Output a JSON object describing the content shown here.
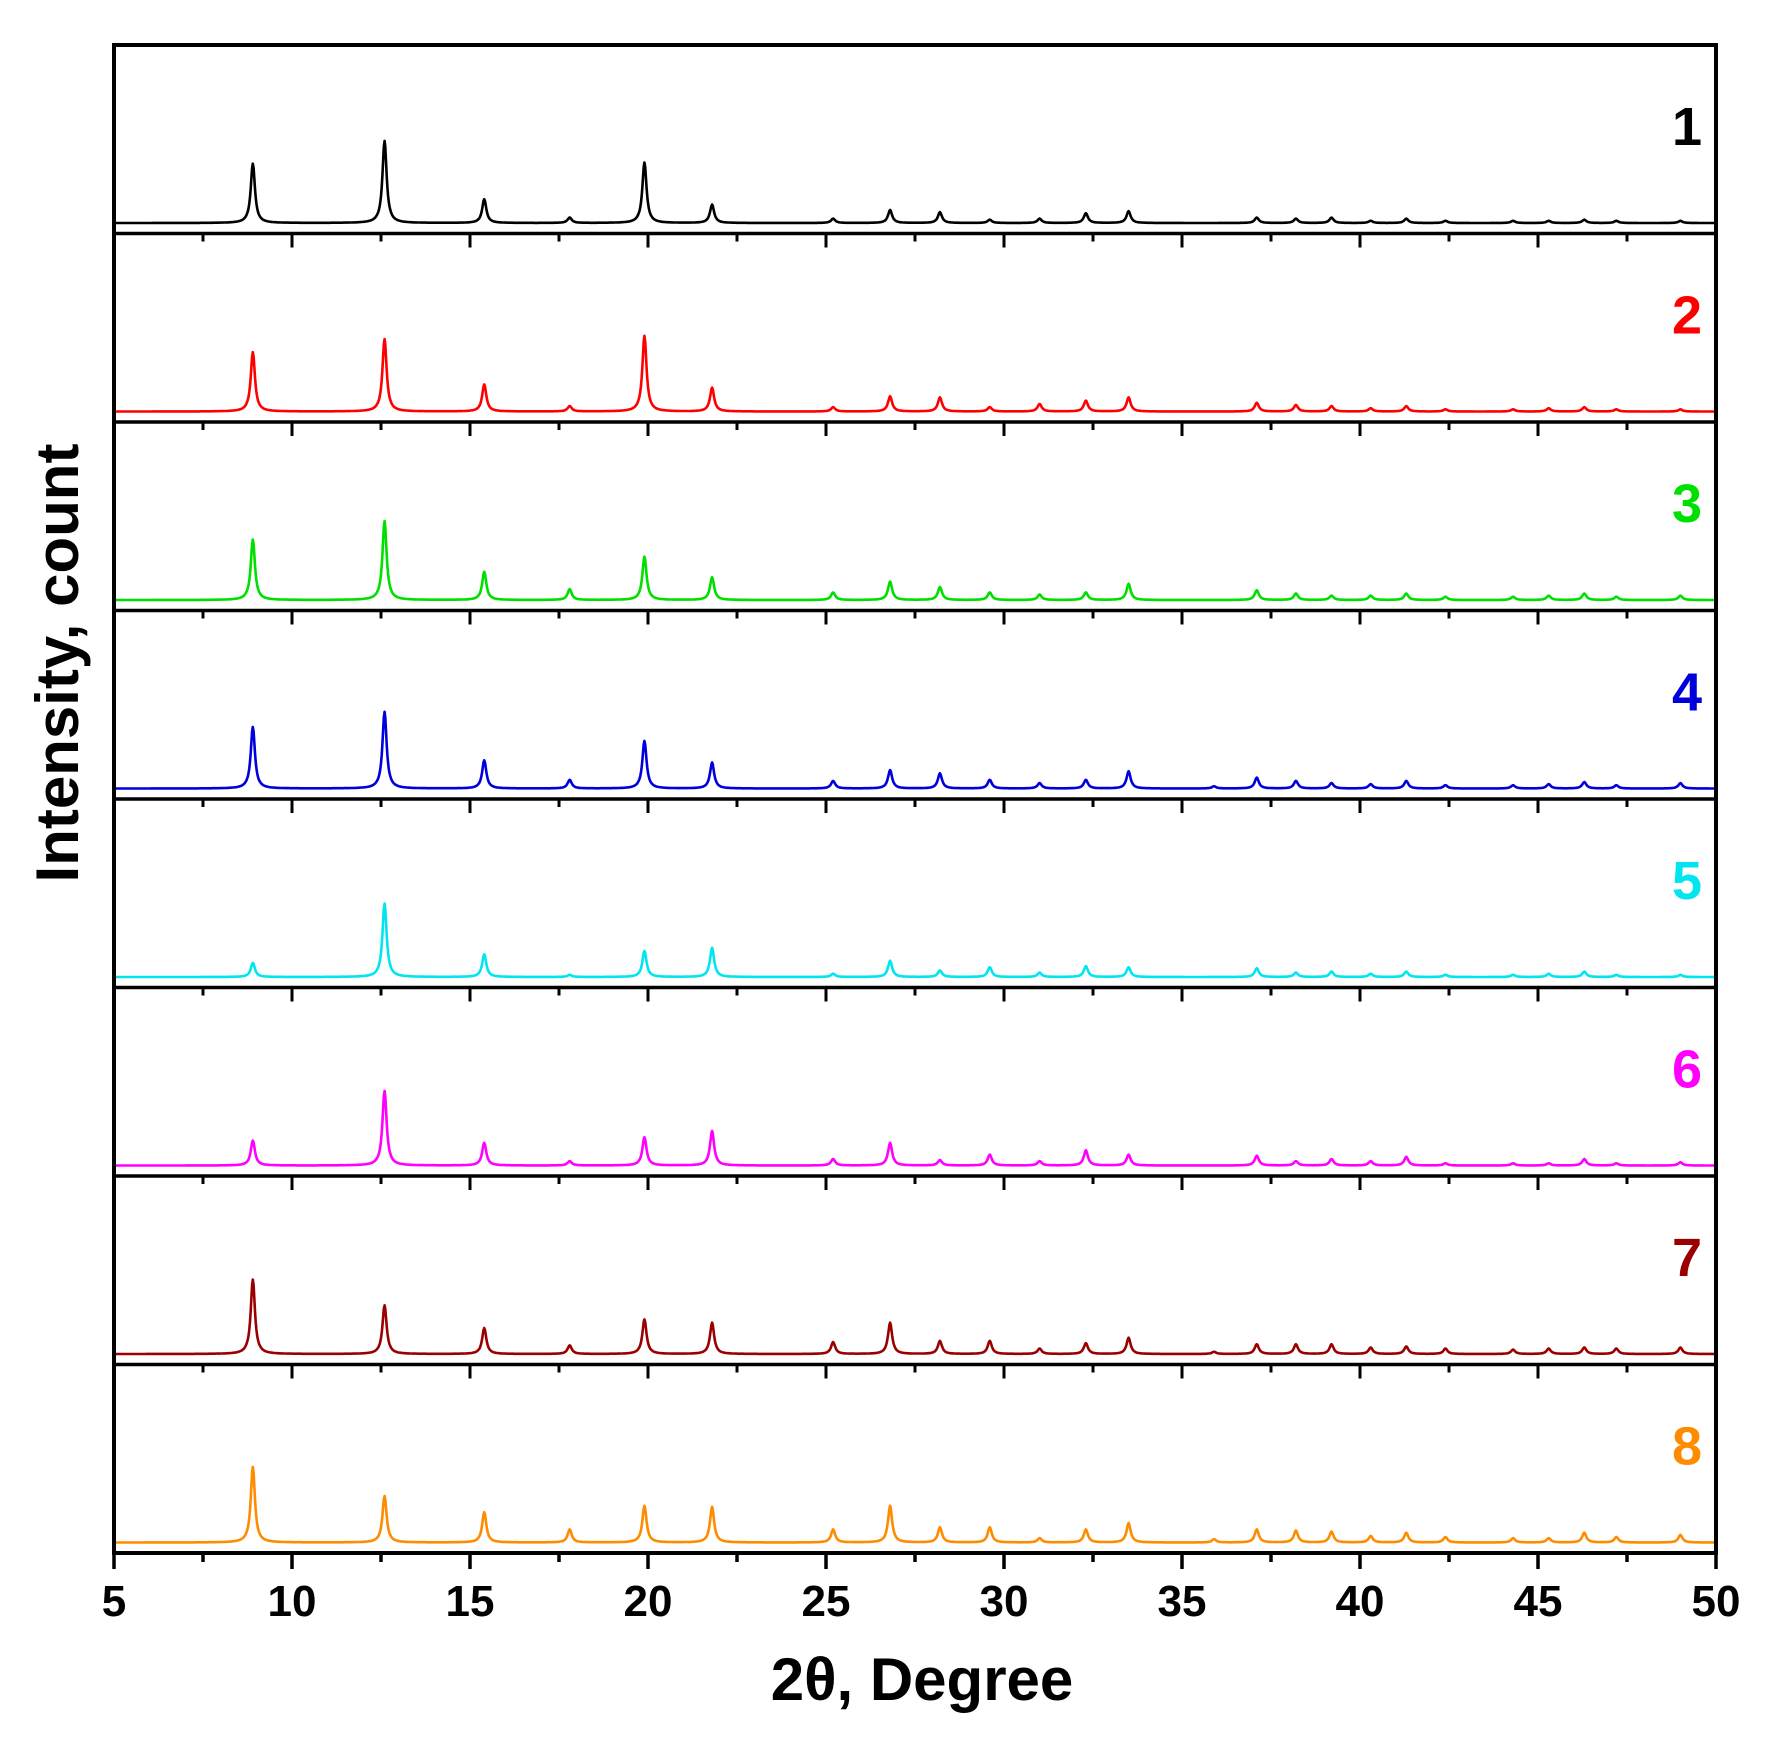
{
  "chart_data": {
    "type": "line",
    "title": "",
    "xlabel": "2θ, Degree",
    "ylabel": "Intensity, count",
    "xlim": [
      5,
      50
    ],
    "xticks": [
      5,
      10,
      15,
      20,
      25,
      30,
      35,
      40,
      45,
      50
    ],
    "grid": false,
    "legend": "none; each panel labeled by number at right",
    "peak_positions": [
      8.9,
      12.6,
      15.4,
      17.8,
      19.9,
      21.8,
      25.2,
      26.8,
      28.2,
      29.6,
      31.0,
      32.3,
      33.5,
      35.9,
      37.1,
      38.2,
      39.2,
      40.3,
      41.3,
      42.4,
      44.3,
      45.3,
      46.3,
      47.2,
      49.0
    ],
    "series": [
      {
        "name": "1",
        "color": "#000000",
        "peak_heights": [
          0.55,
          0.76,
          0.22,
          0.05,
          0.56,
          0.17,
          0.04,
          0.12,
          0.1,
          0.03,
          0.04,
          0.09,
          0.11,
          0.0,
          0.05,
          0.04,
          0.05,
          0.02,
          0.04,
          0.02,
          0.02,
          0.02,
          0.03,
          0.02,
          0.02
        ]
      },
      {
        "name": "2",
        "color": "#ff0000",
        "peak_heights": [
          0.55,
          0.67,
          0.25,
          0.05,
          0.7,
          0.22,
          0.04,
          0.14,
          0.13,
          0.04,
          0.07,
          0.1,
          0.13,
          0.0,
          0.08,
          0.06,
          0.05,
          0.03,
          0.05,
          0.02,
          0.02,
          0.03,
          0.04,
          0.02,
          0.02
        ]
      },
      {
        "name": "3",
        "color": "#00e000",
        "peak_heights": [
          0.56,
          0.73,
          0.26,
          0.1,
          0.4,
          0.21,
          0.07,
          0.17,
          0.12,
          0.07,
          0.05,
          0.07,
          0.15,
          0.0,
          0.09,
          0.06,
          0.04,
          0.04,
          0.06,
          0.03,
          0.03,
          0.04,
          0.06,
          0.03,
          0.04
        ]
      },
      {
        "name": "4",
        "color": "#0000dd",
        "peak_heights": [
          0.57,
          0.71,
          0.26,
          0.08,
          0.44,
          0.24,
          0.07,
          0.17,
          0.14,
          0.08,
          0.05,
          0.08,
          0.16,
          0.02,
          0.1,
          0.07,
          0.05,
          0.04,
          0.07,
          0.03,
          0.03,
          0.04,
          0.06,
          0.03,
          0.05
        ]
      },
      {
        "name": "5",
        "color": "#00e5ee",
        "peak_heights": [
          0.13,
          0.68,
          0.21,
          0.02,
          0.24,
          0.27,
          0.03,
          0.15,
          0.06,
          0.09,
          0.04,
          0.1,
          0.09,
          0.0,
          0.08,
          0.04,
          0.05,
          0.03,
          0.05,
          0.02,
          0.02,
          0.03,
          0.05,
          0.02,
          0.02
        ]
      },
      {
        "name": "6",
        "color": "#ff00ff",
        "peak_heights": [
          0.23,
          0.69,
          0.21,
          0.04,
          0.26,
          0.32,
          0.06,
          0.21,
          0.05,
          0.1,
          0.04,
          0.14,
          0.1,
          0.0,
          0.09,
          0.04,
          0.06,
          0.04,
          0.08,
          0.02,
          0.02,
          0.02,
          0.06,
          0.02,
          0.03
        ]
      },
      {
        "name": "7",
        "color": "#9b0000",
        "peak_heights": [
          0.69,
          0.45,
          0.24,
          0.08,
          0.32,
          0.29,
          0.11,
          0.29,
          0.12,
          0.12,
          0.05,
          0.1,
          0.15,
          0.02,
          0.09,
          0.09,
          0.09,
          0.06,
          0.07,
          0.05,
          0.04,
          0.05,
          0.06,
          0.05,
          0.06
        ]
      },
      {
        "name": "8",
        "color": "#ff8c00",
        "peak_heights": [
          0.7,
          0.43,
          0.28,
          0.12,
          0.34,
          0.33,
          0.12,
          0.34,
          0.14,
          0.14,
          0.04,
          0.12,
          0.18,
          0.03,
          0.12,
          0.11,
          0.1,
          0.06,
          0.09,
          0.05,
          0.04,
          0.04,
          0.09,
          0.05,
          0.07
        ]
      }
    ]
  }
}
